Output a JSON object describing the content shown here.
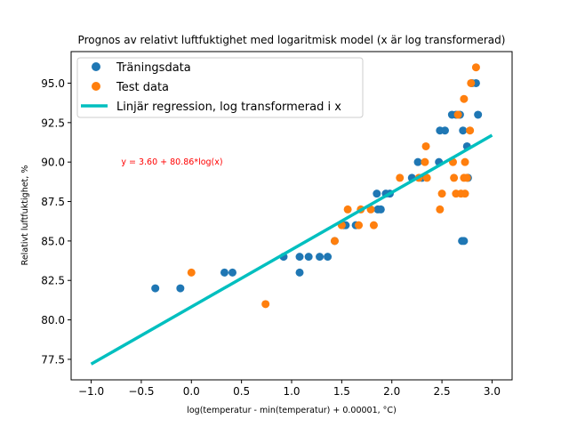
{
  "chart_data": {
    "type": "scatter",
    "title": "Prognos av relativt luftfuktighet med logaritmisk model (x är log transformerad)",
    "xlabel": "log(temperatur - min(temperatur) + 0.00001, °C)",
    "ylabel": "Relativt luftfuktighet, %",
    "xlim": [
      -1.2,
      3.2
    ],
    "ylim": [
      76.2,
      97.0
    ],
    "xticks": [
      -1.0,
      -0.5,
      0.0,
      0.5,
      1.0,
      1.5,
      2.0,
      2.5,
      3.0
    ],
    "xtick_labels": [
      "−1.0",
      "−0.5",
      "0.0",
      "0.5",
      "1.0",
      "1.5",
      "2.0",
      "2.5",
      "3.0"
    ],
    "yticks": [
      77.5,
      80.0,
      82.5,
      85.0,
      87.5,
      90.0,
      92.5,
      95.0
    ],
    "ytick_labels": [
      "77.5",
      "80.0",
      "82.5",
      "85.0",
      "87.5",
      "90.0",
      "92.5",
      "95.0"
    ],
    "grid": false,
    "legend_position": "top-left",
    "annotation": {
      "text": "y = 3.60 + 80.86*log(x)",
      "x": -0.7,
      "y": 90.0,
      "color": "#ff0000"
    },
    "series": [
      {
        "name": "Träningsdata",
        "kind": "scatter",
        "color": "#1f77b4",
        "points": [
          [
            -0.36,
            82
          ],
          [
            -0.11,
            82
          ],
          [
            0.33,
            83
          ],
          [
            0.41,
            83
          ],
          [
            0.92,
            84
          ],
          [
            1.08,
            83
          ],
          [
            1.08,
            84
          ],
          [
            1.17,
            84
          ],
          [
            1.28,
            84
          ],
          [
            1.36,
            84
          ],
          [
            1.43,
            85
          ],
          [
            1.52,
            86
          ],
          [
            1.54,
            86
          ],
          [
            1.64,
            86
          ],
          [
            1.85,
            88
          ],
          [
            1.86,
            87
          ],
          [
            1.89,
            87
          ],
          [
            1.94,
            88
          ],
          [
            1.98,
            88
          ],
          [
            2.2,
            89
          ],
          [
            2.26,
            90
          ],
          [
            2.3,
            89
          ],
          [
            2.47,
            90
          ],
          [
            2.48,
            92
          ],
          [
            2.53,
            92
          ],
          [
            2.6,
            93
          ],
          [
            2.64,
            93
          ],
          [
            2.68,
            93
          ],
          [
            2.7,
            85
          ],
          [
            2.71,
            92
          ],
          [
            2.72,
            85
          ],
          [
            2.75,
            91
          ],
          [
            2.76,
            89
          ],
          [
            2.8,
            95
          ],
          [
            2.84,
            95
          ],
          [
            2.86,
            93
          ]
        ]
      },
      {
        "name": "Test data",
        "kind": "scatter",
        "color": "#ff7f0e",
        "points": [
          [
            0.0,
            83
          ],
          [
            0.74,
            81
          ],
          [
            1.43,
            85
          ],
          [
            1.5,
            86
          ],
          [
            1.56,
            87
          ],
          [
            1.67,
            86
          ],
          [
            1.69,
            87
          ],
          [
            1.79,
            87
          ],
          [
            1.82,
            86
          ],
          [
            2.08,
            89
          ],
          [
            2.27,
            89
          ],
          [
            2.33,
            90
          ],
          [
            2.34,
            91
          ],
          [
            2.35,
            89
          ],
          [
            2.48,
            87
          ],
          [
            2.5,
            88
          ],
          [
            2.61,
            90
          ],
          [
            2.62,
            89
          ],
          [
            2.64,
            88
          ],
          [
            2.66,
            93
          ],
          [
            2.69,
            88
          ],
          [
            2.72,
            89
          ],
          [
            2.72,
            94
          ],
          [
            2.73,
            88
          ],
          [
            2.73,
            90
          ],
          [
            2.75,
            89
          ],
          [
            2.78,
            92
          ],
          [
            2.79,
            95
          ],
          [
            2.84,
            96
          ]
        ]
      },
      {
        "name": "Linjär regression, log transformerad i x",
        "kind": "line",
        "color": "#00bfbf",
        "points": [
          [
            -1.0,
            77.2
          ],
          [
            3.0,
            91.7
          ]
        ]
      }
    ]
  }
}
